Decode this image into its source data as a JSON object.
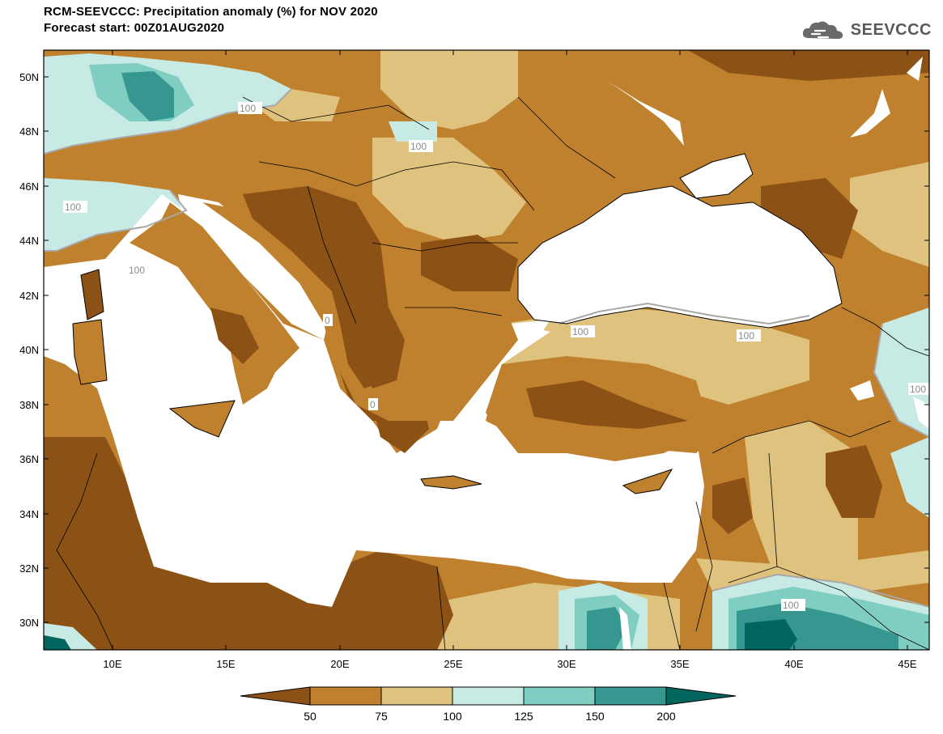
{
  "header": {
    "title_line1": "RCM-SEEVCCC: Precipitation anomaly (%) for NOV 2020",
    "title_line2": "Forecast start: 00Z01AUG2020",
    "logo_text": "SEEVCCC"
  },
  "map": {
    "lat_labels": [
      "50N",
      "48N",
      "46N",
      "44N",
      "42N",
      "40N",
      "38N",
      "36N",
      "34N",
      "32N",
      "30N"
    ],
    "lon_labels": [
      "10E",
      "15E",
      "20E",
      "25E",
      "30E",
      "35E",
      "40E",
      "45E"
    ],
    "contour_labels": [
      "100",
      "100",
      "100",
      "100",
      "100",
      "100",
      "100",
      "100",
      "100",
      "0",
      "0"
    ],
    "palette": {
      "below_50": "#8c5114",
      "50_75": "#bf812d",
      "75_100": "#dfc27d",
      "100_125": "#c7eae5",
      "125_150": "#80cdc1",
      "150_200": "#35978f",
      "above_200": "#01665e",
      "sea": "#ffffff"
    }
  },
  "colorbar": {
    "labels": [
      "50",
      "75",
      "100",
      "125",
      "150",
      "200"
    ],
    "colors": [
      "#8c5114",
      "#bf812d",
      "#dfc27d",
      "#c7eae5",
      "#80cdc1",
      "#35978f",
      "#01665e"
    ]
  }
}
